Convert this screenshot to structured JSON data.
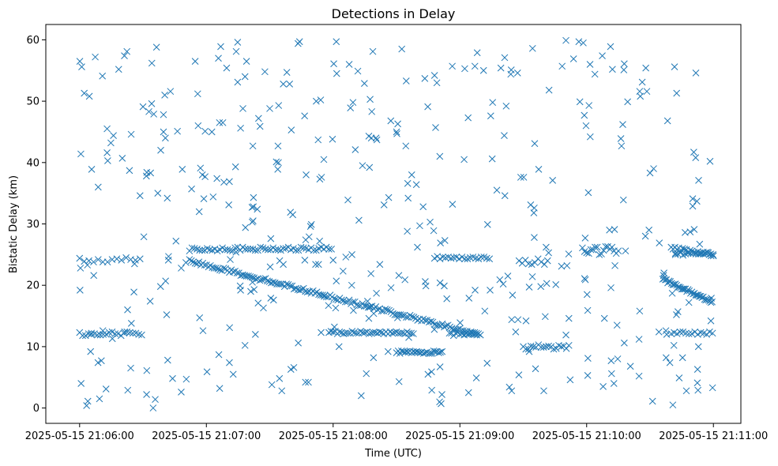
{
  "chart_data": {
    "type": "scatter",
    "title": "Detections in Delay",
    "xlabel": "Time (UTC)",
    "ylabel": "Bistatic Delay (km)",
    "marker": "x",
    "color": "#1f77b4",
    "x_unit": "seconds since 2025-05-15 21:06:00",
    "xlim": [
      -16,
      313
    ],
    "ylim": [
      -2.5,
      62.5
    ],
    "xticks": [
      {
        "value": 0,
        "label": "2025-05-15 21:06:00"
      },
      {
        "value": 60,
        "label": "2025-05-15 21:07:00"
      },
      {
        "value": 120,
        "label": "2025-05-15 21:08:00"
      },
      {
        "value": 180,
        "label": "2025-05-15 21:09:00"
      },
      {
        "value": 240,
        "label": "2025-05-15 21:10:00"
      },
      {
        "value": 300,
        "label": "2025-05-15 21:11:00"
      }
    ],
    "yticks": [
      {
        "value": 0,
        "label": "0"
      },
      {
        "value": 10,
        "label": "10"
      },
      {
        "value": 20,
        "label": "20"
      },
      {
        "value": 30,
        "label": "30"
      },
      {
        "value": 40,
        "label": "40"
      },
      {
        "value": 50,
        "label": "50"
      },
      {
        "value": 60,
        "label": "60"
      }
    ],
    "series": [
      {
        "name": "Detections",
        "x": [],
        "y": []
      }
    ]
  }
}
